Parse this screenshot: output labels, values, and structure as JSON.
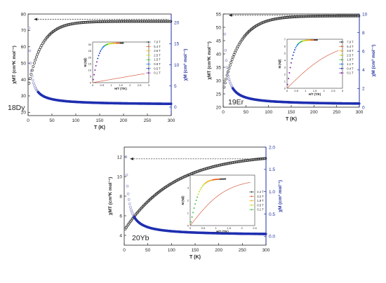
{
  "colors": {
    "black_series": "#333333",
    "blue_series": "#1f2fb0",
    "blue_axis": "#1f2fa0",
    "open_marker": "#8a90c8"
  },
  "chart_data": [
    {
      "type": "scatter",
      "label": "18Dy",
      "xlabel": "T (K)",
      "ylabel_left": "χMT (cm³K mol⁻¹)",
      "ylabel_right": "χM (cm³ mol⁻¹)",
      "xlim": [
        0,
        300
      ],
      "ylim_left": [
        18,
        80
      ],
      "ylim_right": [
        -2,
        22
      ],
      "xticks": [
        0,
        50,
        100,
        150,
        200,
        250,
        300
      ],
      "yticks_left": [
        20,
        30,
        40,
        50,
        60,
        70,
        80
      ],
      "yticks_right": [
        0,
        5,
        10,
        15,
        20
      ],
      "series": [
        {
          "axis": "left",
          "plateau": 75.5,
          "low": 35,
          "tau": 28
        },
        {
          "axis": "right",
          "C": 69,
          "offset": 0.55
        }
      ],
      "dashed_arrow_value": 76.8,
      "inset": {
        "xlabel": "H/T (T/K)",
        "ylabel": "M (Nβ)",
        "xlim": [
          0,
          3
        ],
        "ylim": [
          0,
          32
        ],
        "xticks": [
          0,
          0.5,
          1,
          1.5,
          2,
          2.5,
          3
        ],
        "yticks": [
          0,
          5,
          10,
          15,
          20,
          25,
          30
        ],
        "saturation": 31.2,
        "legend": [
          "7.0 T",
          "5.4 T",
          "3.6 T",
          "2.5 T",
          "1.5 T",
          "0.9 T",
          "0.5 T",
          "0.1 T"
        ]
      }
    },
    {
      "type": "scatter",
      "label": "19Er",
      "xlabel": "T (K)",
      "ylabel_left": "χMT (cm³K mol⁻¹)",
      "ylabel_right": "χM (cm³ mol⁻¹)",
      "xlim": [
        0,
        300
      ],
      "ylim_left": [
        20,
        55
      ],
      "ylim_right": [
        0,
        10
      ],
      "xticks": [
        0,
        50,
        100,
        150,
        200,
        250,
        300
      ],
      "yticks_left": [
        20,
        25,
        30,
        35,
        40,
        45,
        50,
        55
      ],
      "yticks_right": [
        0,
        2,
        4,
        6,
        8,
        10
      ],
      "series": [
        {
          "axis": "left",
          "plateau": 54.3,
          "low": 26,
          "tau": 36
        },
        {
          "axis": "right",
          "C": 41,
          "offset": 0.25
        }
      ],
      "dashed_arrow_value": 54.5,
      "inset": {
        "xlabel": "H/T (T/K)",
        "ylabel": "M (Nβ)",
        "xlim": [
          0,
          3
        ],
        "ylim": [
          0,
          7
        ],
        "xticks": [
          0,
          0.5,
          1,
          1.5,
          2,
          2.5,
          3
        ],
        "yticks": [
          0,
          1,
          2,
          3,
          4,
          5,
          6,
          7
        ],
        "saturation": 6.9,
        "legend": [
          "7.0 T",
          "5.4 T",
          "3.6 T",
          "2.5 T",
          "1.8 T",
          "1.1 T",
          "0.4 T",
          "0.1 T"
        ]
      }
    },
    {
      "type": "scatter",
      "label": "20Yb",
      "xlabel": "T (K)",
      "ylabel_left": "χMT (cm³K mol⁻¹)",
      "ylabel_right": "χM (cm³ mol⁻¹)",
      "xlim": [
        0,
        300
      ],
      "ylim_left": [
        3,
        13
      ],
      "ylim_right": [
        -0.2,
        2.0
      ],
      "xticks": [
        0,
        50,
        100,
        150,
        200,
        250,
        300
      ],
      "yticks_left": [
        4,
        6,
        8,
        10,
        12
      ],
      "yticks_right": [
        0.0,
        0.5,
        1.0,
        1.5,
        2.0
      ],
      "series": [
        {
          "axis": "left",
          "plateau": 12.3,
          "low": 4.5,
          "tau": 105
        },
        {
          "axis": "right",
          "C": 9.5,
          "offset": 0.02
        }
      ],
      "dashed_arrow_value": 11.8,
      "inset": {
        "xlabel": "H/T (T/K)",
        "ylabel": "M (Nβ)",
        "xlim": [
          0,
          2.5
        ],
        "ylim": [
          0,
          4
        ],
        "xticks": [
          0,
          0.5,
          1,
          1.5,
          2,
          2.5
        ],
        "yticks": [
          0,
          1,
          2,
          3,
          4
        ],
        "saturation": 3.7,
        "legend": [
          "4.4 T",
          "3.2 T",
          "1.8 T",
          "0.5 T",
          "0.1 T"
        ]
      }
    }
  ]
}
